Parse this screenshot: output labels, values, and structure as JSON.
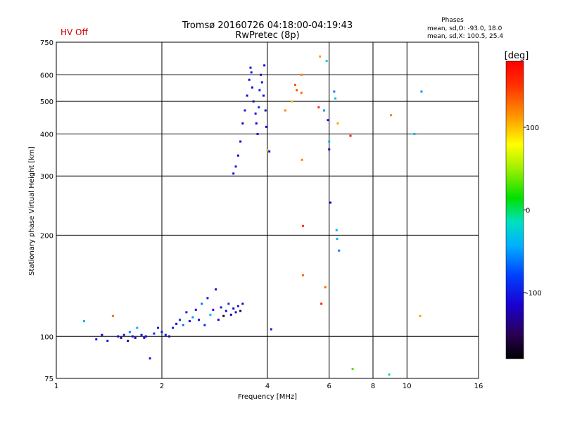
{
  "status_text": "HV Off",
  "colors": {
    "status": "#cc0000",
    "grid": "#000000",
    "background": "#ffffff"
  },
  "chart_data": {
    "type": "scatter",
    "title": "Tromsø 20160726 04:18:00-04:19:43",
    "subtitle": "RwPretec (8p)",
    "xlabel": "Frequency [MHz]",
    "ylabel": "Stationary phase Virtual Height [km]",
    "x_scale": "log",
    "y_scale": "log",
    "xlim": [
      1,
      16
    ],
    "ylim": [
      75,
      750
    ],
    "x_ticks": [
      1,
      2,
      4,
      6,
      8,
      10,
      16
    ],
    "x_tick_labels": [
      "1",
      "2",
      "4",
      "6",
      "8",
      "10",
      "16"
    ],
    "y_ticks": [
      75,
      100,
      200,
      300,
      400,
      500,
      600,
      750
    ],
    "y_tick_labels": [
      "75",
      "100",
      "200",
      "300",
      "400",
      "500",
      "600",
      "750"
    ],
    "grid": true,
    "phases_box": {
      "title": "Phases",
      "line1": "mean, sd,O: -93.0, 18.0",
      "line2": "mean, sd,X: 100.5, 25.4"
    },
    "colorbar": {
      "label": "[deg]",
      "range": [
        -180,
        180
      ],
      "ticks": [
        100,
        0,
        -100
      ],
      "tick_labels": [
        "100",
        "0",
        "-100"
      ]
    },
    "series": [
      {
        "values": [
          [
            1.2,
            111,
            -40
          ],
          [
            1.3,
            98,
            -100
          ],
          [
            1.35,
            101,
            -120
          ],
          [
            1.4,
            97,
            -100
          ],
          [
            1.45,
            115,
            130
          ],
          [
            1.5,
            100,
            -110
          ],
          [
            1.53,
            99,
            -130
          ],
          [
            1.56,
            101,
            -100
          ],
          [
            1.6,
            97,
            -120
          ],
          [
            1.62,
            103,
            -60
          ],
          [
            1.65,
            100,
            -110
          ],
          [
            1.68,
            99,
            -120
          ],
          [
            1.7,
            106,
            -40
          ],
          [
            1.75,
            101,
            -110
          ],
          [
            1.78,
            99,
            -100
          ],
          [
            1.8,
            100,
            -120
          ],
          [
            1.85,
            86,
            -100
          ],
          [
            1.9,
            102,
            -90
          ],
          [
            1.95,
            106,
            -100
          ],
          [
            2.0,
            103,
            -110
          ],
          [
            2.05,
            101,
            -100
          ],
          [
            2.1,
            100,
            -120
          ],
          [
            2.15,
            106,
            -100
          ],
          [
            2.2,
            109,
            -110
          ],
          [
            2.25,
            112,
            -90
          ],
          [
            2.3,
            108,
            -60
          ],
          [
            2.35,
            118,
            -100
          ],
          [
            2.4,
            111,
            -110
          ],
          [
            2.45,
            114,
            -50
          ],
          [
            2.5,
            120,
            -100
          ],
          [
            2.55,
            112,
            -110
          ],
          [
            2.6,
            125,
            -60
          ],
          [
            2.65,
            108,
            -90
          ],
          [
            2.7,
            130,
            -100
          ],
          [
            2.75,
            116,
            -40
          ],
          [
            2.8,
            120,
            -100
          ],
          [
            2.85,
            138,
            -110
          ],
          [
            2.9,
            112,
            -120
          ],
          [
            2.95,
            122,
            -100
          ],
          [
            3.0,
            115,
            -160
          ],
          [
            3.05,
            119,
            -110
          ],
          [
            3.1,
            125,
            -90
          ],
          [
            3.15,
            116,
            -120
          ],
          [
            3.2,
            121,
            -130
          ],
          [
            3.25,
            118,
            -110
          ],
          [
            3.3,
            123,
            -100
          ],
          [
            3.35,
            119,
            -150
          ],
          [
            3.4,
            125,
            -110
          ],
          [
            3.2,
            305,
            -110
          ],
          [
            3.25,
            320,
            -100
          ],
          [
            3.3,
            345,
            -110
          ],
          [
            3.35,
            380,
            -110
          ],
          [
            3.4,
            430,
            -120
          ],
          [
            3.45,
            470,
            -100
          ],
          [
            3.5,
            520,
            -110
          ],
          [
            3.55,
            580,
            -100
          ],
          [
            3.58,
            630,
            -110
          ],
          [
            3.6,
            610,
            -100
          ],
          [
            3.62,
            550,
            -110
          ],
          [
            3.65,
            500,
            -120
          ],
          [
            3.7,
            460,
            -100
          ],
          [
            3.72,
            430,
            -110
          ],
          [
            3.75,
            400,
            -110
          ],
          [
            3.78,
            480,
            -90
          ],
          [
            3.8,
            540,
            -100
          ],
          [
            3.83,
            600,
            -110
          ],
          [
            3.86,
            570,
            -100
          ],
          [
            3.9,
            520,
            -110
          ],
          [
            3.92,
            640,
            -110
          ],
          [
            3.95,
            470,
            -120
          ],
          [
            3.97,
            420,
            -110
          ],
          [
            4.0,
            358,
            100
          ],
          [
            4.05,
            355,
            -110
          ],
          [
            4.1,
            105,
            -100
          ],
          [
            4.5,
            470,
            120
          ],
          [
            4.7,
            500,
            100
          ],
          [
            4.8,
            560,
            140
          ],
          [
            4.85,
            540,
            140
          ],
          [
            5.0,
            530,
            130
          ],
          [
            5.0,
            600,
            120
          ],
          [
            5.02,
            335,
            120
          ],
          [
            5.05,
            213,
            150
          ],
          [
            5.05,
            152,
            130
          ],
          [
            5.6,
            480,
            150
          ],
          [
            5.65,
            680,
            110
          ],
          [
            5.7,
            125,
            160
          ],
          [
            5.8,
            470,
            -50
          ],
          [
            5.85,
            140,
            130
          ],
          [
            5.9,
            660,
            -20
          ],
          [
            5.95,
            440,
            -100
          ],
          [
            6.0,
            380,
            -40
          ],
          [
            6.0,
            360,
            -110
          ],
          [
            6.05,
            250,
            -110
          ],
          [
            6.2,
            535,
            -60
          ],
          [
            6.25,
            510,
            -30
          ],
          [
            6.3,
            207,
            -40
          ],
          [
            6.32,
            195,
            -40
          ],
          [
            6.35,
            430,
            110
          ],
          [
            6.4,
            180,
            -60
          ],
          [
            6.9,
            395,
            160
          ],
          [
            7.0,
            80,
            30
          ],
          [
            8.9,
            77,
            -10
          ],
          [
            9.0,
            455,
            120
          ],
          [
            10.5,
            400,
            -40
          ],
          [
            10.9,
            115,
            110
          ],
          [
            11.0,
            535,
            -50
          ]
        ]
      }
    ]
  }
}
